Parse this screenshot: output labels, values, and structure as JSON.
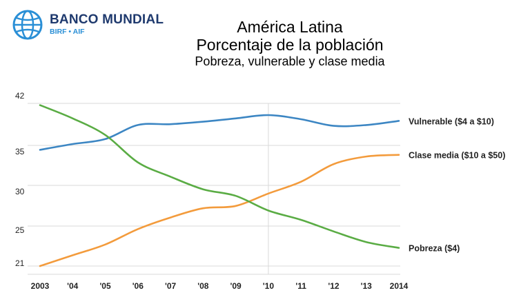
{
  "logo": {
    "name": "BANCO MUNDIAL",
    "sub": "BIRF • AIF"
  },
  "chart_data": {
    "type": "line",
    "title": "América Latina",
    "subtitle": "Porcentaje de la población",
    "subtitle2": "Pobreza, vulnerable y clase media",
    "x": [
      2003,
      2004,
      2005,
      2006,
      2007,
      2008,
      2009,
      2010,
      2011,
      2012,
      2013,
      2014
    ],
    "xtick_labels": [
      "2003",
      "'04",
      "'05",
      "'06",
      "'07",
      "'08",
      "'09",
      "'10",
      "'11",
      "'12",
      "'13",
      "2014"
    ],
    "ytick_labels": [
      "21",
      "25",
      "30",
      "35",
      "42"
    ],
    "grid": true,
    "series": [
      {
        "name": "Vulnerable ($4 a $10)",
        "color": "#3c86c3",
        "values": [
          35.3,
          36.0,
          36.6,
          38.3,
          38.4,
          38.7,
          39.1,
          39.5,
          39.0,
          38.2,
          38.3,
          38.8
        ]
      },
      {
        "name": "Clase media ($10 a $50)",
        "color": "#f39b3c",
        "values": [
          21.0,
          22.3,
          23.6,
          25.5,
          27.0,
          28.2,
          28.5,
          30.1,
          31.5,
          33.6,
          34.5,
          34.7
        ]
      },
      {
        "name": "Pobreza ($4)",
        "color": "#5aac44",
        "values": [
          40.7,
          39.1,
          37.1,
          33.8,
          32.1,
          30.6,
          29.8,
          27.9,
          26.7,
          25.2,
          23.9,
          23.2
        ]
      }
    ]
  }
}
